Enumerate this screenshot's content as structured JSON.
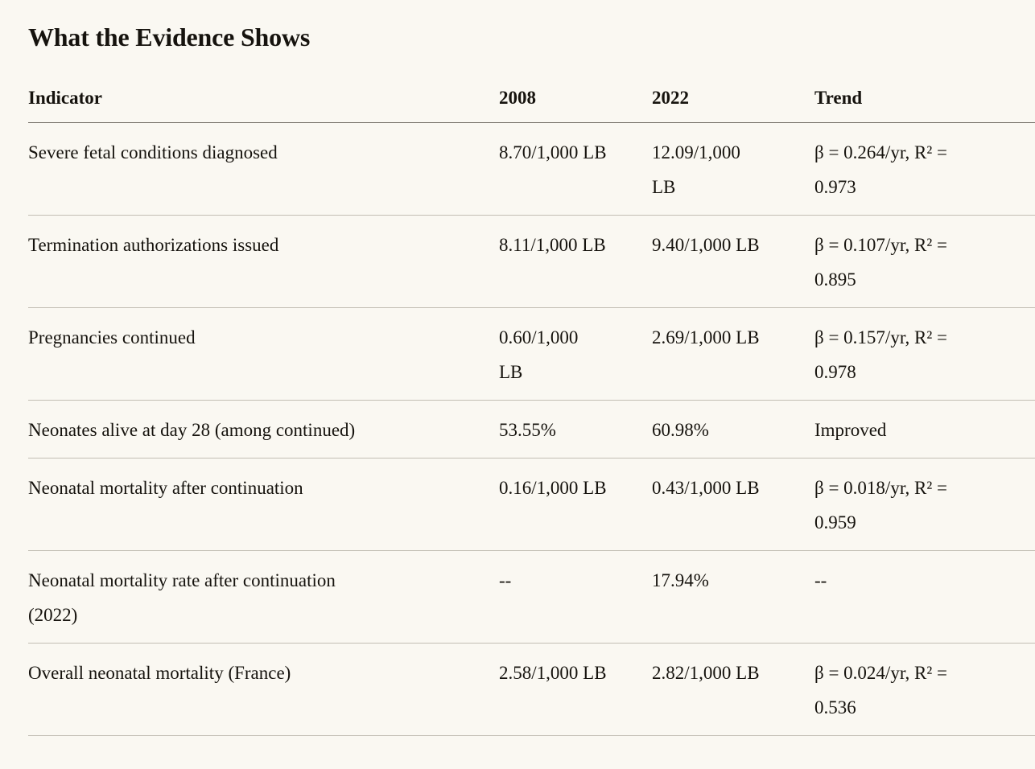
{
  "page": {
    "title": "What the Evidence Shows",
    "background_color": "#faf8f2",
    "text_color": "#16130e",
    "header_rule_color": "#6f6a61",
    "row_rule_color": "#c2beb4"
  },
  "table": {
    "columns": {
      "indicator": "Indicator",
      "y2008": "2008",
      "y2022": "2022",
      "trend": "Trend"
    },
    "rows": [
      {
        "indicator": "Severe fetal conditions diagnosed",
        "y2008": "8.70/1,000 LB",
        "y2022": "12.09/1,000\nLB",
        "trend": "β = 0.264/yr, R² =\n0.973"
      },
      {
        "indicator": "Termination authorizations issued",
        "y2008": "8.11/1,000 LB",
        "y2022": "9.40/1,000 LB",
        "trend": "β = 0.107/yr, R² =\n0.895"
      },
      {
        "indicator": "Pregnancies continued",
        "y2008": "0.60/1,000\nLB",
        "y2022": "2.69/1,000 LB",
        "trend": "β = 0.157/yr, R² =\n0.978"
      },
      {
        "indicator": "Neonates alive at day 28 (among continued)",
        "y2008": "53.55%",
        "y2022": "60.98%",
        "trend": "Improved"
      },
      {
        "indicator": "Neonatal mortality after continuation",
        "y2008": "0.16/1,000 LB",
        "y2022": "0.43/1,000 LB",
        "trend": "β = 0.018/yr, R² =\n0.959"
      },
      {
        "indicator": "Neonatal mortality rate after continuation\n(2022)",
        "y2008": "--",
        "y2022": "17.94%",
        "trend": "--"
      },
      {
        "indicator": "Overall neonatal mortality (France)",
        "y2008": "2.58/1,000 LB",
        "y2022": "2.82/1,000 LB",
        "trend": "β = 0.024/yr, R² =\n0.536"
      }
    ]
  }
}
